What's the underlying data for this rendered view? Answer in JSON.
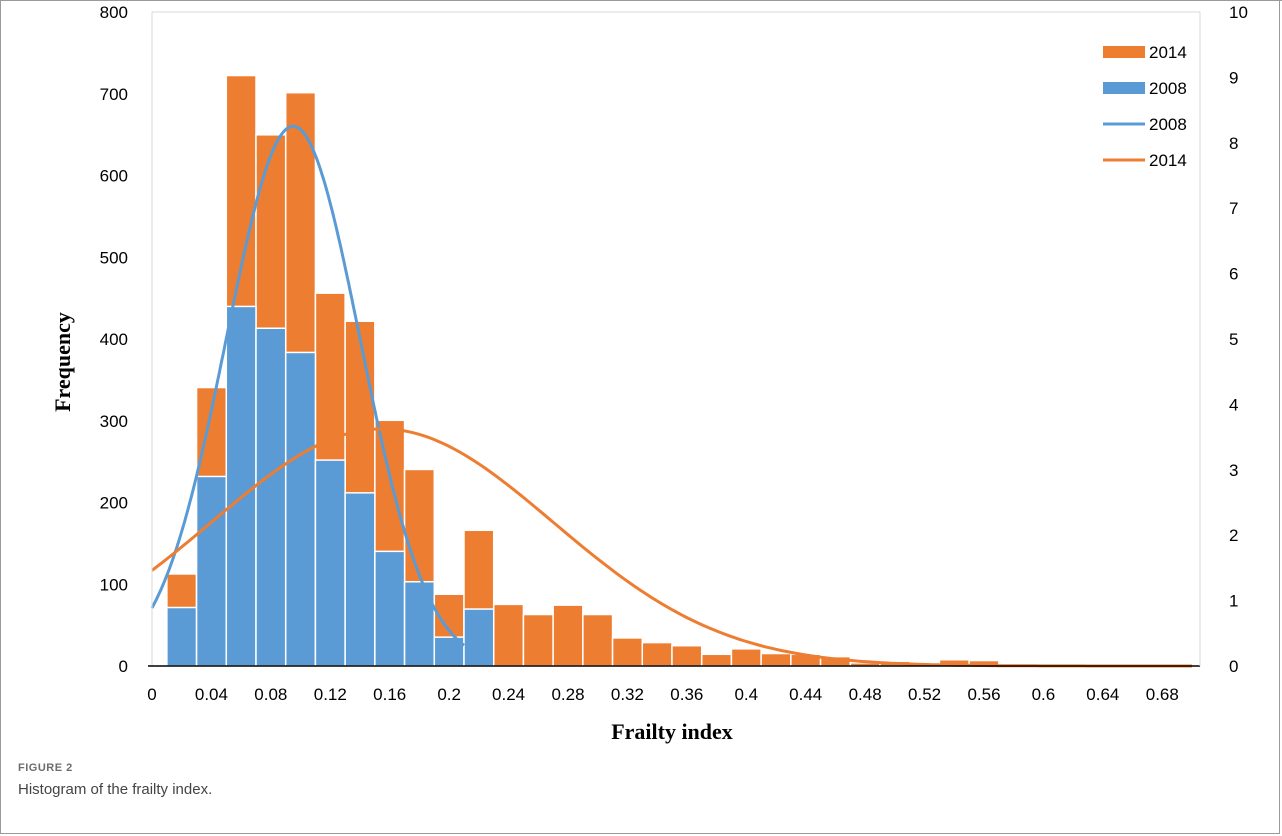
{
  "caption": {
    "label": "FIGURE 2",
    "text": "Histogram of the frailty index."
  },
  "chart_data": {
    "type": "bar",
    "xlabel": "Frailty index",
    "ylabel": "Frequency",
    "x_tick_labels": [
      "0",
      "0.04",
      "0.08",
      "0.12",
      "0.16",
      "0.2",
      "0.24",
      "0.28",
      "0.32",
      "0.36",
      "0.4",
      "0.44",
      "0.48",
      "0.52",
      "0.56",
      "0.6",
      "0.64",
      "0.68"
    ],
    "xlim": [
      0,
      0.7
    ],
    "ylim": [
      0,
      800
    ],
    "y_ticks": [
      0,
      100,
      200,
      300,
      400,
      500,
      600,
      700,
      800
    ],
    "y2lim": [
      0,
      10
    ],
    "y2_ticks": [
      0,
      1,
      2,
      3,
      4,
      5,
      6,
      7,
      8,
      9,
      10
    ],
    "bin_width": 0.02,
    "bin_centers": [
      0.02,
      0.04,
      0.06,
      0.08,
      0.1,
      0.12,
      0.14,
      0.16,
      0.18,
      0.2,
      0.22,
      0.24,
      0.26,
      0.28,
      0.3,
      0.32,
      0.34,
      0.36,
      0.38,
      0.4,
      0.42,
      0.44,
      0.46,
      0.48,
      0.5,
      0.52,
      0.54,
      0.56,
      0.58,
      0.6,
      0.62,
      0.64,
      0.66,
      0.68
    ],
    "series": [
      {
        "name": "2014",
        "kind": "histogram",
        "color": "#ED7D31",
        "values": [
          118,
          357,
          757,
          681,
          735,
          478,
          442,
          315,
          252,
          92,
          174,
          79,
          66,
          78,
          66,
          36,
          30,
          26,
          15,
          22,
          16,
          15,
          12,
          4,
          6,
          3,
          8,
          7,
          0,
          0,
          0,
          0,
          0,
          0
        ]
      },
      {
        "name": "2008",
        "kind": "histogram",
        "color": "#5B9BD5",
        "values": [
          75,
          243,
          461,
          433,
          402,
          264,
          222,
          147,
          108,
          37,
          73,
          0,
          0,
          0,
          0,
          0,
          0,
          0,
          0,
          0,
          0,
          0,
          0,
          0,
          0,
          0,
          0,
          0,
          0,
          0,
          0,
          0,
          0,
          0
        ]
      },
      {
        "name": "2008",
        "kind": "density-curve",
        "axis": "right",
        "color": "#5B9BD5",
        "mean": 0.095,
        "sd": 0.045,
        "peak": 8.65,
        "x_range": [
          0,
          0.21
        ]
      },
      {
        "name": "2014",
        "kind": "density-curve",
        "axis": "right",
        "color": "#ED7D31",
        "mean": 0.155,
        "sd": 0.115,
        "peak": 3.8,
        "x_range": [
          0,
          0.7
        ]
      }
    ],
    "legend": {
      "position": "top-right",
      "entries": [
        {
          "label": "2014",
          "type": "bar",
          "color": "#ED7D31"
        },
        {
          "label": "2008",
          "type": "bar",
          "color": "#5B9BD5"
        },
        {
          "label": "2008",
          "type": "line",
          "color": "#5B9BD5"
        },
        {
          "label": "2014",
          "type": "line",
          "color": "#ED7D31"
        }
      ]
    },
    "grid": false
  }
}
